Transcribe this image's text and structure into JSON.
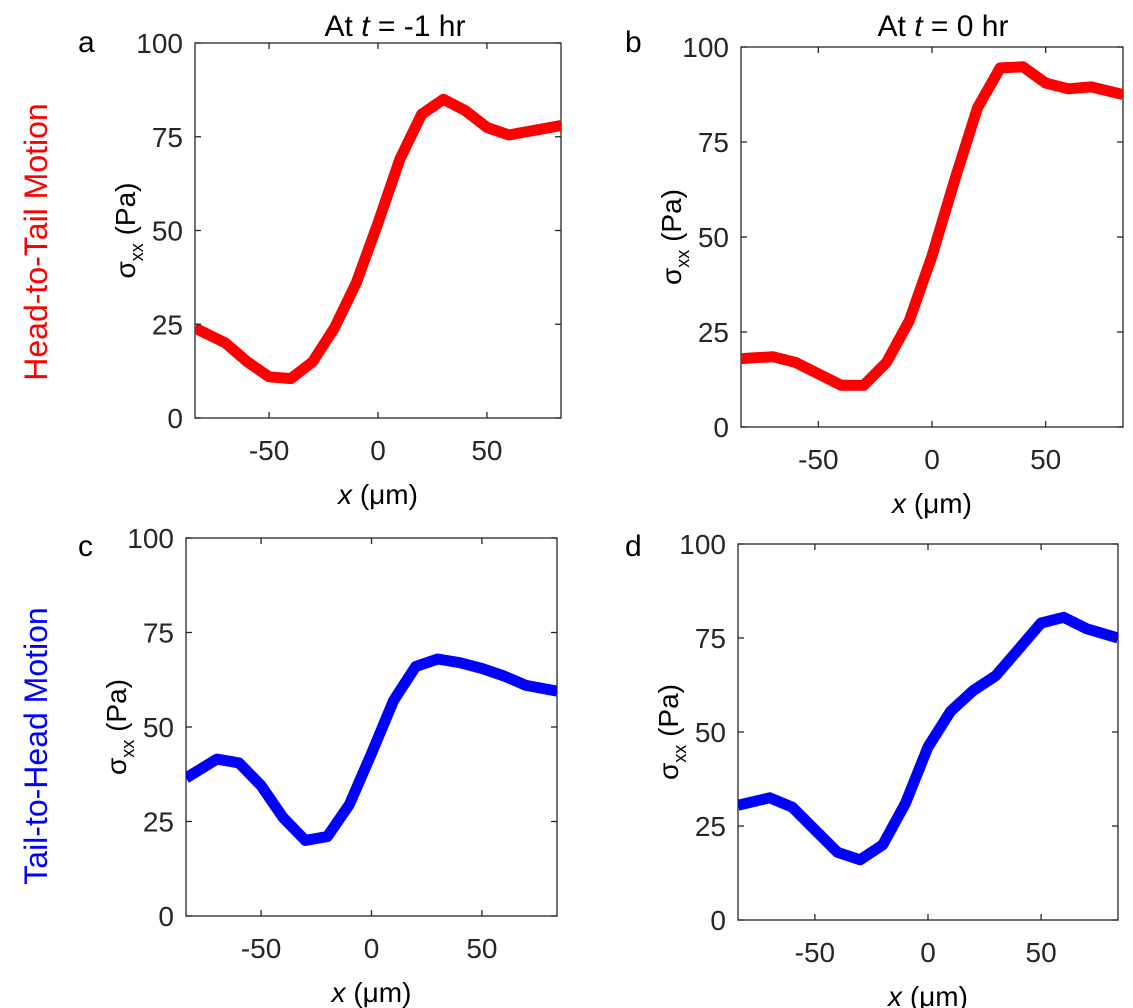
{
  "column_titles": [
    {
      "prefix": "At ",
      "var": "t",
      "suffix": " = -1 hr"
    },
    {
      "prefix": "At ",
      "var": "t",
      "suffix": " = 0 hr"
    }
  ],
  "row_labels": [
    {
      "text": "Head-to-Tail Motion",
      "color": "#ff0000"
    },
    {
      "text": "Tail-to-Head Motion",
      "color": "#0000ff"
    }
  ],
  "axis_text": {
    "y_main": "σ",
    "y_sub": "xx",
    "y_unit": " (Pa)",
    "x_var": "x",
    "x_unit": " (μm)"
  },
  "chart_data": [
    {
      "panel": "a",
      "type": "line",
      "color": "#ff0000",
      "xlim": [
        -84,
        84
      ],
      "ylim": [
        0,
        100
      ],
      "xticks": [
        -50,
        0,
        50
      ],
      "yticks": [
        0,
        25,
        50,
        75,
        100
      ],
      "grid": false,
      "x": [
        -84,
        -70,
        -60,
        -50,
        -40,
        -30,
        -20,
        -10,
        0,
        10,
        20,
        30,
        40,
        50,
        60,
        70,
        84
      ],
      "y": [
        24,
        20,
        15,
        11,
        10.5,
        15,
        24,
        36,
        52,
        69,
        81,
        85,
        82,
        77.5,
        75.5,
        76.5,
        78
      ]
    },
    {
      "panel": "b",
      "type": "line",
      "color": "#ff0000",
      "xlim": [
        -84,
        84
      ],
      "ylim": [
        0,
        100
      ],
      "xticks": [
        -50,
        0,
        50
      ],
      "yticks": [
        0,
        25,
        50,
        75,
        100
      ],
      "grid": false,
      "x": [
        -84,
        -70,
        -60,
        -50,
        -40,
        -30,
        -20,
        -10,
        0,
        10,
        20,
        30,
        40,
        50,
        60,
        70,
        84
      ],
      "y": [
        18,
        18.5,
        17,
        14,
        11,
        11,
        17,
        28,
        45,
        65,
        84,
        94.5,
        94.8,
        90.5,
        89,
        89.5,
        87.5
      ]
    },
    {
      "panel": "c",
      "type": "line",
      "color": "#0000ff",
      "xlim": [
        -84,
        84
      ],
      "ylim": [
        0,
        100
      ],
      "xticks": [
        -50,
        0,
        50
      ],
      "yticks": [
        0,
        25,
        50,
        75,
        100
      ],
      "grid": false,
      "x": [
        -84,
        -70,
        -60,
        -50,
        -40,
        -30,
        -20,
        -10,
        0,
        10,
        20,
        30,
        40,
        50,
        60,
        70,
        84
      ],
      "y": [
        36.5,
        41.5,
        40.5,
        34.5,
        26,
        20,
        21,
        29.5,
        43,
        57,
        66,
        68,
        67,
        65.5,
        63.5,
        61,
        59.5
      ]
    },
    {
      "panel": "d",
      "type": "line",
      "color": "#0000ff",
      "xlim": [
        -84,
        84
      ],
      "ylim": [
        0,
        100
      ],
      "xticks": [
        -50,
        0,
        50
      ],
      "yticks": [
        0,
        25,
        50,
        75,
        100
      ],
      "grid": false,
      "x": [
        -84,
        -70,
        -60,
        -50,
        -40,
        -30,
        -20,
        -10,
        0,
        10,
        20,
        30,
        40,
        50,
        60,
        70,
        84
      ],
      "y": [
        30.5,
        32.5,
        30,
        24,
        18,
        16,
        20,
        31,
        46,
        55.5,
        61,
        65,
        72,
        79,
        80.5,
        77.5,
        75
      ]
    }
  ]
}
